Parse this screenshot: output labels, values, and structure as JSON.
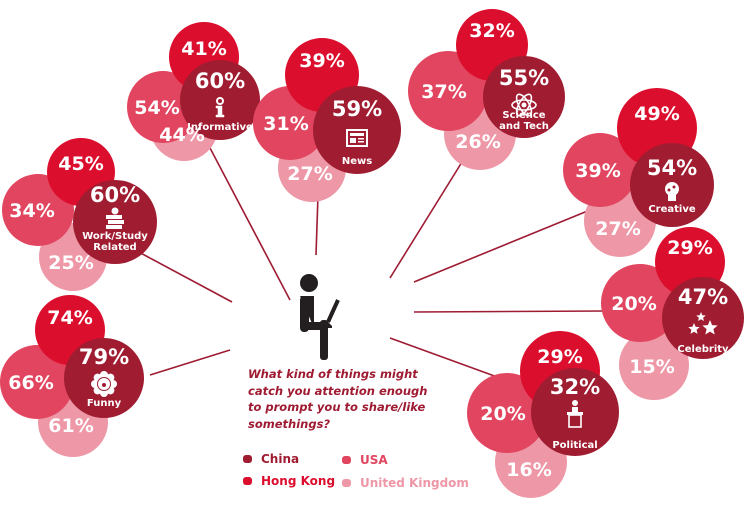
{
  "question": "What kind of things might catch you attention enough to prompt you to share/like somethings?",
  "question_lines": [
    "What kind of things might",
    "catch you attention enough",
    "to prompt you to share/like",
    "somethings?"
  ],
  "legend": [
    {
      "label": "China",
      "color": "#a01c31"
    },
    {
      "label": "Hong Kong",
      "color": "#dc0e2e"
    },
    {
      "label": "USA",
      "color": "#e2455f"
    },
    {
      "label": "United Kingdom",
      "color": "#ed97a7"
    }
  ],
  "chart_data": {
    "type": "bubble-cluster",
    "title": "What kind of things might catch you attention enough to prompt you to share/like somethings?",
    "series_order": [
      "China",
      "Hong Kong",
      "USA",
      "United Kingdom"
    ],
    "categories": [
      "Informative",
      "News",
      "Science and Tech",
      "Creative",
      "Celebrity",
      "Political",
      "Funny",
      "Work/Study Related"
    ],
    "series": [
      {
        "name": "China",
        "values": [
          60,
          59,
          55,
          54,
          47,
          32,
          79,
          60
        ]
      },
      {
        "name": "Hong Kong",
        "values": [
          41,
          39,
          32,
          49,
          29,
          29,
          74,
          45
        ]
      },
      {
        "name": "USA",
        "values": [
          54,
          31,
          37,
          39,
          20,
          20,
          66,
          34
        ]
      },
      {
        "name": "United Kingdom",
        "values": [
          44,
          27,
          26,
          27,
          15,
          16,
          61,
          25
        ]
      }
    ]
  },
  "clusters": [
    {
      "label": "Informative",
      "label_lines": [
        "Informative"
      ],
      "icon": "info-icon",
      "china": "60%",
      "hk": "41%",
      "usa": "54%",
      "uk": "44%"
    },
    {
      "label": "News",
      "label_lines": [
        "News"
      ],
      "icon": "newspaper-icon",
      "china": "59%",
      "hk": "39%",
      "usa": "31%",
      "uk": "27%"
    },
    {
      "label": "Science and Tech",
      "label_lines": [
        "Science",
        "and Tech"
      ],
      "icon": "atom-icon",
      "china": "55%",
      "hk": "32%",
      "usa": "37%",
      "uk": "26%"
    },
    {
      "label": "Creative",
      "label_lines": [
        "Creative"
      ],
      "icon": "palette-head-icon",
      "china": "54%",
      "hk": "49%",
      "usa": "39%",
      "uk": "27%"
    },
    {
      "label": "Celebrity",
      "label_lines": [
        "Celebrity"
      ],
      "icon": "stars-icon",
      "china": "47%",
      "hk": "29%",
      "usa": "20%",
      "uk": "15%"
    },
    {
      "label": "Political",
      "label_lines": [
        "Political"
      ],
      "icon": "podium-icon",
      "china": "32%",
      "hk": "29%",
      "usa": "20%",
      "uk": "16%"
    },
    {
      "label": "Funny",
      "label_lines": [
        "Funny"
      ],
      "icon": "clown-icon",
      "china": "79%",
      "hk": "74%",
      "usa": "66%",
      "uk": "61%"
    },
    {
      "label": "Work/Study Related",
      "label_lines": [
        "Work/Study",
        "Related"
      ],
      "icon": "books-apple-icon",
      "china": "60%",
      "hk": "45%",
      "usa": "34%",
      "uk": "25%"
    }
  ]
}
